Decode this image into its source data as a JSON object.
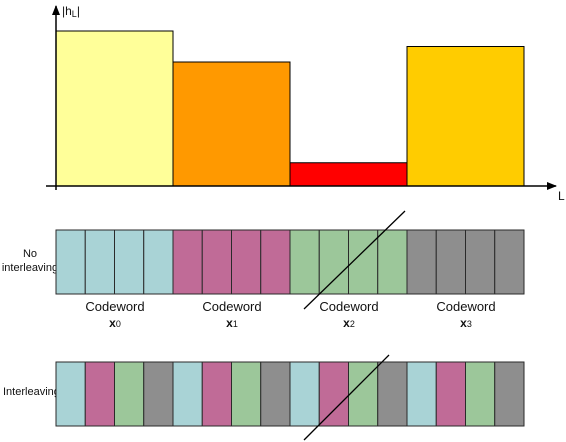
{
  "channel_plot": {
    "y_axis_label": "|h",
    "y_axis_label_sub": "L",
    "y_axis_label_end": "|",
    "x_axis_label": "L",
    "segments": [
      {
        "level": 1.0,
        "color": "#ffff99"
      },
      {
        "level": 0.8,
        "color": "#ff9900"
      },
      {
        "level": 0.15,
        "color": "#ff0000"
      },
      {
        "level": 0.9,
        "color": "#ffcc00"
      }
    ]
  },
  "rows": {
    "no_interleaving": {
      "label_line1": "No",
      "label_line2": "interleaving",
      "cells": [
        0,
        0,
        0,
        0,
        1,
        1,
        1,
        1,
        2,
        2,
        2,
        2,
        3,
        3,
        3,
        3
      ]
    },
    "interleaving": {
      "label": "Interleaving",
      "cells": [
        0,
        1,
        2,
        3,
        0,
        1,
        2,
        3,
        0,
        1,
        2,
        3,
        0,
        1,
        2,
        3
      ]
    }
  },
  "codewords": [
    {
      "label": "Codeword",
      "symbol": "x",
      "sub": "0",
      "color": "#a9d3d6"
    },
    {
      "label": "Codeword",
      "symbol": "x",
      "sub": "1",
      "color": "#c06b97"
    },
    {
      "label": "Codeword",
      "symbol": "x",
      "sub": "2",
      "color": "#9cc79a"
    },
    {
      "label": "Codeword",
      "symbol": "x",
      "sub": "3",
      "color": "#8e8e8e"
    }
  ]
}
